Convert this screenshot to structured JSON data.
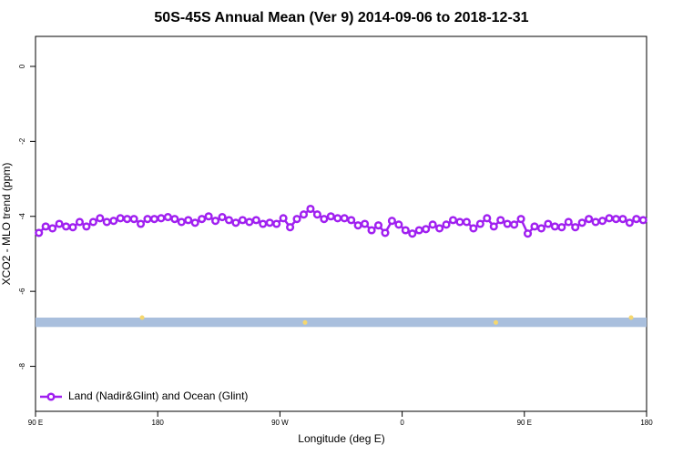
{
  "chart_data": {
    "type": "line",
    "title": "50S-45S Annual Mean (Ver 9)   2014-09-06 to 2018-12-31",
    "x_label": "Longitude (deg E)",
    "y_label": "XCO2 - MLO trend (ppm)",
    "xlim": [
      90,
      540
    ],
    "ylim": [
      -9.2,
      0.8
    ],
    "xticks": [
      {
        "value": 90,
        "label": "90 E"
      },
      180,
      {
        "value": 270,
        "label": "90 W"
      },
      {
        "value": 360,
        "label": "0"
      },
      {
        "value": 450,
        "label": "90 E"
      },
      {
        "value": 540,
        "label": "180"
      }
    ],
    "yticks": [
      0,
      -2,
      -4,
      -6,
      -8
    ],
    "x": [
      92.5,
      97.5,
      102.5,
      107.5,
      112.5,
      117.5,
      122.5,
      127.5,
      132.5,
      137.5,
      142.5,
      147.5,
      152.5,
      157.5,
      162.5,
      167.5,
      172.5,
      177.5,
      182.5,
      187.5,
      192.5,
      197.5,
      202.5,
      207.5,
      212.5,
      217.5,
      222.5,
      227.5,
      232.5,
      237.5,
      242.5,
      247.5,
      252.5,
      257.5,
      262.5,
      267.5,
      272.5,
      277.5,
      282.5,
      287.5,
      292.5,
      297.5,
      302.5,
      307.5,
      312.5,
      317.5,
      322.5,
      327.5,
      332.5,
      337.5,
      342.5,
      347.5,
      352.5,
      357.5,
      362.5,
      367.5,
      372.5,
      377.5,
      382.5,
      387.5,
      392.5,
      397.5,
      402.5,
      407.5,
      412.5,
      417.5,
      422.5,
      427.5,
      432.5,
      437.5,
      442.5,
      447.5,
      452.5,
      457.5,
      462.5,
      467.5,
      472.5,
      477.5,
      482.5,
      487.5,
      492.5,
      497.5,
      502.5,
      507.5,
      512.5,
      517.5,
      522.5,
      527.5,
      532.5,
      537.5
    ],
    "series": [
      {
        "name": "Land (Nadir&Glint) and Ocean (Glint)",
        "color": "#a020f0",
        "values": [
          -4.44,
          -4.27,
          -4.32,
          -4.2,
          -4.27,
          -4.29,
          -4.15,
          -4.27,
          -4.15,
          -4.05,
          -4.15,
          -4.12,
          -4.05,
          -4.07,
          -4.07,
          -4.2,
          -4.07,
          -4.07,
          -4.05,
          -4.02,
          -4.07,
          -4.15,
          -4.1,
          -4.17,
          -4.07,
          -4.0,
          -4.12,
          -4.02,
          -4.1,
          -4.17,
          -4.1,
          -4.15,
          -4.1,
          -4.2,
          -4.17,
          -4.2,
          -4.05,
          -4.29,
          -4.07,
          -3.95,
          -3.8,
          -3.95,
          -4.07,
          -4.0,
          -4.05,
          -4.05,
          -4.1,
          -4.24,
          -4.2,
          -4.37,
          -4.24,
          -4.44,
          -4.12,
          -4.22,
          -4.37,
          -4.46,
          -4.37,
          -4.34,
          -4.22,
          -4.32,
          -4.22,
          -4.1,
          -4.15,
          -4.15,
          -4.32,
          -4.2,
          -4.05,
          -4.27,
          -4.1,
          -4.2,
          -4.22,
          -4.07,
          -4.46,
          -4.27,
          -4.32,
          -4.2,
          -4.27,
          -4.29,
          -4.15,
          -4.29,
          -4.17,
          -4.07,
          -4.15,
          -4.12,
          -4.05,
          -4.07,
          -4.07,
          -4.17,
          -4.07,
          -4.1
        ]
      }
    ],
    "band": {
      "range": [
        -6.95,
        -6.7
      ],
      "color": "#a9bfdd"
    },
    "land_points": {
      "x": [
        168.5,
        288.5,
        429,
        528.6
      ],
      "values": [
        -6.7,
        -6.83,
        -6.83,
        -6.7
      ],
      "color": "#f5d76e"
    },
    "legend": "bottom-left"
  }
}
